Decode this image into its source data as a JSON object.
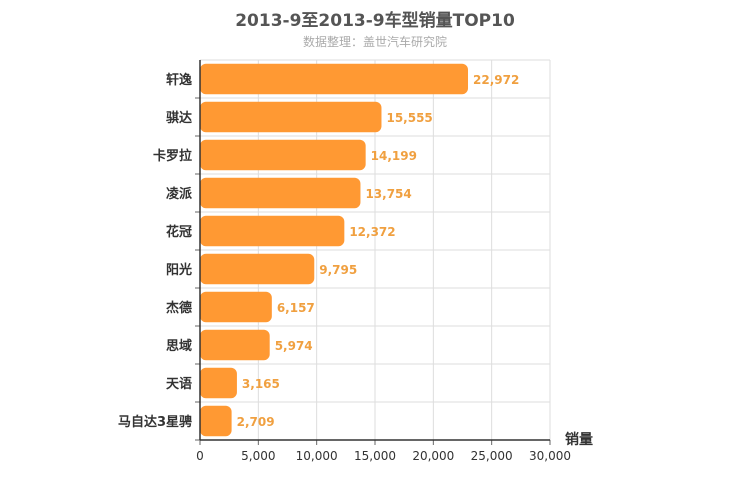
{
  "chart_data": {
    "type": "bar",
    "orientation": "horizontal",
    "title": "2013-9至2013-9车型销量TOP10",
    "subtitle": "数据整理：盖世汽车研究院",
    "xlabel": "销量",
    "ylabel": "",
    "categories": [
      "轩逸",
      "骐达",
      "卡罗拉",
      "凌派",
      "花冠",
      "阳光",
      "杰德",
      "思域",
      "天语",
      "马自达3星骋"
    ],
    "values": [
      22972,
      15555,
      14199,
      13754,
      12372,
      9795,
      6157,
      5974,
      3165,
      2709
    ],
    "value_labels": [
      "22,972",
      "15,555",
      "14,199",
      "13,754",
      "12,372",
      "9,795",
      "6,157",
      "5,974",
      "3,165",
      "2,709"
    ],
    "xlim": [
      0,
      30000
    ],
    "x_ticks": [
      0,
      5000,
      10000,
      15000,
      20000,
      25000,
      30000
    ],
    "x_tick_labels": [
      "0",
      "5,000",
      "10,000",
      "15,000",
      "20,000",
      "25,000",
      "30,000"
    ],
    "grid": true,
    "bar_color": "#ff9933",
    "label_color": "#f0a040"
  }
}
